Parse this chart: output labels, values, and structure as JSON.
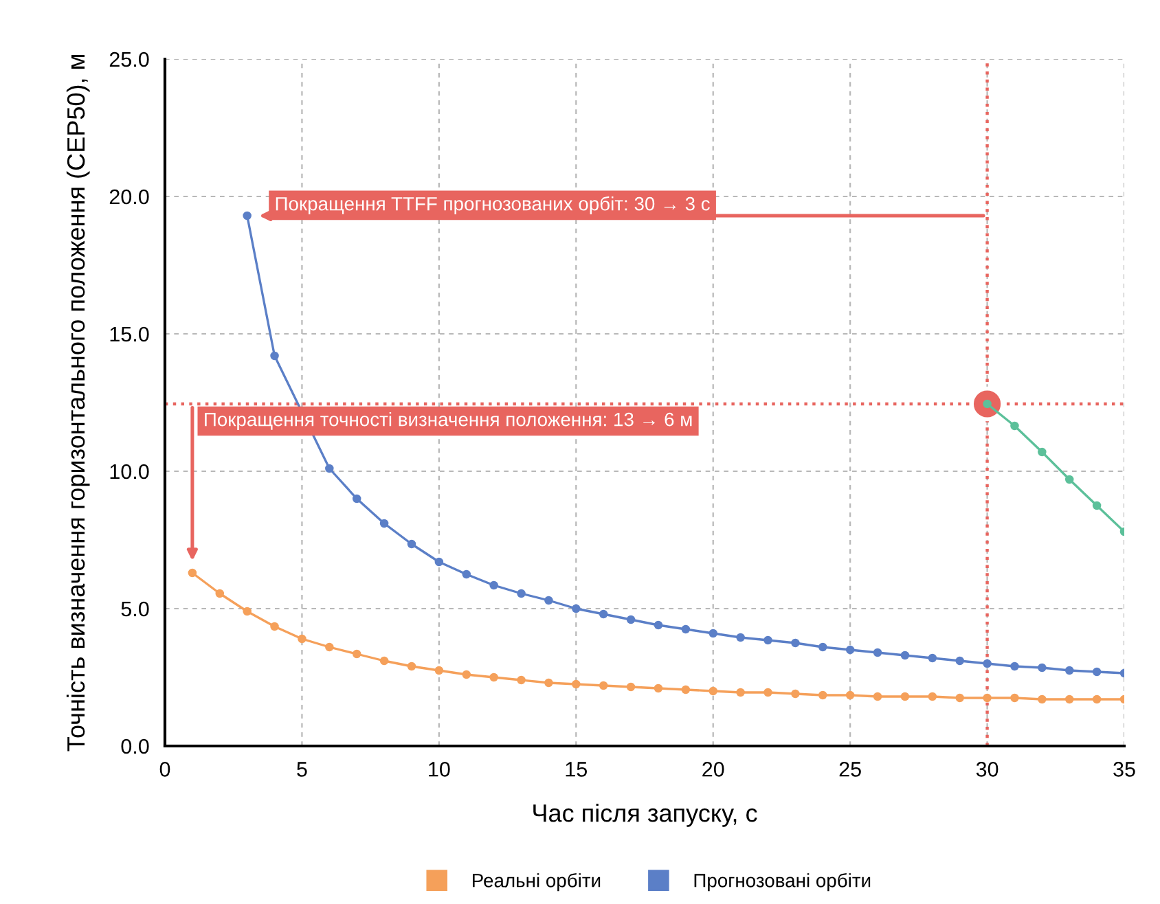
{
  "chart_data": {
    "type": "line",
    "xlabel": "Час після запуску, с",
    "ylabel": "Точність визначення горизонтального положення (CEP50), м",
    "xlim": [
      0,
      35
    ],
    "xticks": [
      0,
      5,
      10,
      15,
      20,
      25,
      30,
      35
    ],
    "ylim": [
      0,
      25
    ],
    "yticks": [
      {
        "value": 0,
        "label": "0.0"
      },
      {
        "value": 5,
        "label": "5.0"
      },
      {
        "value": 10,
        "label": "10.0"
      },
      {
        "value": 15,
        "label": "15.0"
      },
      {
        "value": 20,
        "label": "20.0"
      },
      {
        "value": 25,
        "label": "25.0"
      }
    ],
    "grid": true,
    "legend": "bottom",
    "marker": "circle",
    "line_style": "solid",
    "series": [
      {
        "name": "Реальні орбіти",
        "color": "#f5a05a",
        "x": [
          1,
          2,
          3,
          4,
          5,
          6,
          7,
          8,
          9,
          10,
          11,
          12,
          13,
          14,
          15,
          16,
          17,
          18,
          19,
          20,
          21,
          22,
          23,
          24,
          25,
          26,
          27,
          28,
          29,
          30,
          31,
          32,
          33,
          34,
          35
        ],
        "values": [
          6.3,
          5.55,
          4.9,
          4.35,
          3.9,
          3.6,
          3.35,
          3.1,
          2.9,
          2.75,
          2.6,
          2.5,
          2.4,
          2.3,
          2.25,
          2.2,
          2.15,
          2.1,
          2.05,
          2.0,
          1.95,
          1.95,
          1.9,
          1.85,
          1.85,
          1.8,
          1.8,
          1.8,
          1.75,
          1.75,
          1.75,
          1.7,
          1.7,
          1.7,
          1.7
        ]
      },
      {
        "name": "Прогнозовані орбіти",
        "color": "#5b7fc7",
        "x": [
          3,
          4,
          6,
          7,
          8,
          9,
          10,
          11,
          12,
          13,
          14,
          15,
          16,
          17,
          18,
          19,
          20,
          21,
          22,
          23,
          24,
          25,
          26,
          27,
          28,
          29,
          30,
          31,
          32,
          33,
          34,
          35
        ],
        "values": [
          19.3,
          14.2,
          10.1,
          9.0,
          8.1,
          7.35,
          6.7,
          6.25,
          5.85,
          5.55,
          5.3,
          5.0,
          4.8,
          4.6,
          4.4,
          4.25,
          4.1,
          3.95,
          3.85,
          3.75,
          3.6,
          3.5,
          3.4,
          3.3,
          3.2,
          3.1,
          3.0,
          2.9,
          2.85,
          2.75,
          2.7,
          2.65
        ]
      },
      {
        "color": "#5cc09a",
        "x": [
          30,
          31,
          32,
          33,
          34,
          35
        ],
        "values": [
          12.45,
          11.65,
          10.7,
          9.7,
          8.75,
          7.8
        ]
      }
    ],
    "ref_lines": [
      {
        "axis": "x",
        "value": 30,
        "color": "#e8655f",
        "line_style": "dotted"
      },
      {
        "axis": "y",
        "value": 12.45,
        "color": "#e8655f",
        "line_style": "dotted"
      }
    ],
    "annotations": [
      {
        "text": "Покращення TTFF прогнозованих орбіт: 30 → 3 с",
        "x": 3,
        "y": 19.3
      },
      "Покращення точності визначення положення: 13 → 6 м"
    ]
  }
}
